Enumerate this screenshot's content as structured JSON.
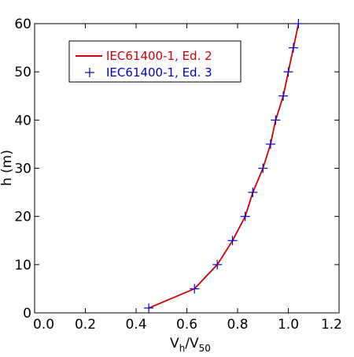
{
  "chart_data": {
    "type": "line",
    "xlabel": {
      "main": "V",
      "sub1": "h",
      "sep": "/V",
      "sub2": "50"
    },
    "ylabel": "h (m)",
    "xlim": [
      0.0,
      1.2
    ],
    "ylim": [
      0,
      60
    ],
    "x_ticks": [
      "0.0",
      "0.2",
      "0.4",
      "0.6",
      "0.8",
      "1.0",
      "1.2"
    ],
    "y_ticks": [
      "0",
      "10",
      "20",
      "30",
      "40",
      "50",
      "60"
    ],
    "legend": "top-left",
    "grid": false,
    "series": [
      {
        "name": "IEC61400-1, Ed. 2",
        "style": "line",
        "color": "#cc0000",
        "x": [
          0.45,
          0.63,
          0.72,
          0.78,
          0.83,
          0.86,
          0.9,
          0.93,
          0.95,
          0.98,
          1.0,
          1.02,
          1.04
        ],
        "y": [
          1,
          5,
          10,
          15,
          20,
          25,
          30,
          35,
          40,
          45,
          50,
          55,
          60
        ]
      },
      {
        "name": "IEC61400-1, Ed. 3",
        "style": "marker-plus",
        "color": "#0000cc",
        "x": [
          0.45,
          0.63,
          0.72,
          0.78,
          0.83,
          0.86,
          0.9,
          0.93,
          0.95,
          0.98,
          1.0,
          1.02,
          1.04
        ],
        "y": [
          1,
          5,
          10,
          15,
          20,
          25,
          30,
          35,
          40,
          45,
          50,
          55,
          60
        ]
      }
    ]
  }
}
